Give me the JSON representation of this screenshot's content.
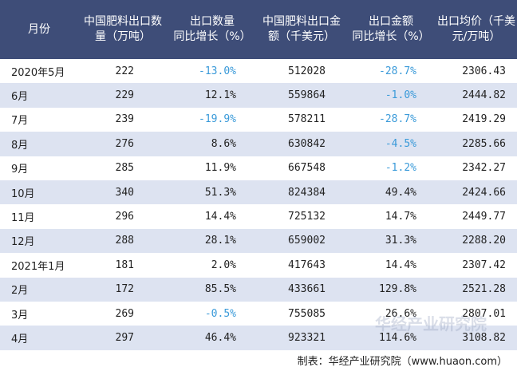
{
  "header": {
    "month": "月份",
    "qty_line1": "中国肥料出口数",
    "qty_line2": "量（万吨）",
    "qty_yoy_line1": "出口数量",
    "qty_yoy_line2": "同比增长（%）",
    "amt_line1": "中国肥料出口金",
    "amt_line2": "额（千美元）",
    "amt_yoy_line1": "出口金额",
    "amt_yoy_line2": "同比增长（%）",
    "price_line1": "出口均价（千美",
    "price_line2": "元/万吨）"
  },
  "rows": [
    {
      "month": "2020年5月",
      "qty": "222",
      "qty_yoy": "-13.0%",
      "amt": "512028",
      "amt_yoy": "-28.7%",
      "price": "2306.43"
    },
    {
      "month": "6月",
      "qty": "229",
      "qty_yoy": "12.1%",
      "amt": "559864",
      "amt_yoy": "-1.0%",
      "price": "2444.82"
    },
    {
      "month": "7月",
      "qty": "239",
      "qty_yoy": "-19.9%",
      "amt": "578211",
      "amt_yoy": "-28.7%",
      "price": "2419.29"
    },
    {
      "month": "8月",
      "qty": "276",
      "qty_yoy": "8.6%",
      "amt": "630842",
      "amt_yoy": "-4.5%",
      "price": "2285.66"
    },
    {
      "month": "9月",
      "qty": "285",
      "qty_yoy": "11.9%",
      "amt": "667548",
      "amt_yoy": "-1.2%",
      "price": "2342.27"
    },
    {
      "month": "10月",
      "qty": "340",
      "qty_yoy": "51.3%",
      "amt": "824384",
      "amt_yoy": "49.4%",
      "price": "2424.66"
    },
    {
      "month": "11月",
      "qty": "296",
      "qty_yoy": "14.4%",
      "amt": "725132",
      "amt_yoy": "14.7%",
      "price": "2449.77"
    },
    {
      "month": "12月",
      "qty": "288",
      "qty_yoy": "28.1%",
      "amt": "659002",
      "amt_yoy": "31.3%",
      "price": "2288.20"
    },
    {
      "month": "2021年1月",
      "qty": "181",
      "qty_yoy": "2.0%",
      "amt": "417643",
      "amt_yoy": "14.4%",
      "price": "2307.42"
    },
    {
      "month": "2月",
      "qty": "172",
      "qty_yoy": "85.5%",
      "amt": "433661",
      "amt_yoy": "129.8%",
      "price": "2521.28"
    },
    {
      "month": "3月",
      "qty": "269",
      "qty_yoy": "-0.5%",
      "amt": "755085",
      "amt_yoy": "26.6%",
      "price": "2807.01"
    },
    {
      "month": "4月",
      "qty": "297",
      "qty_yoy": "46.4%",
      "amt": "923321",
      "amt_yoy": "114.6%",
      "price": "3108.82"
    }
  ],
  "footer": "制表：华经产业研究院（www.huaon.com）",
  "watermark": "华经产业研究院",
  "colors": {
    "header_bg": "#3e4d78",
    "stripe": "#dde3f1",
    "negative": "#3a9ad9"
  }
}
